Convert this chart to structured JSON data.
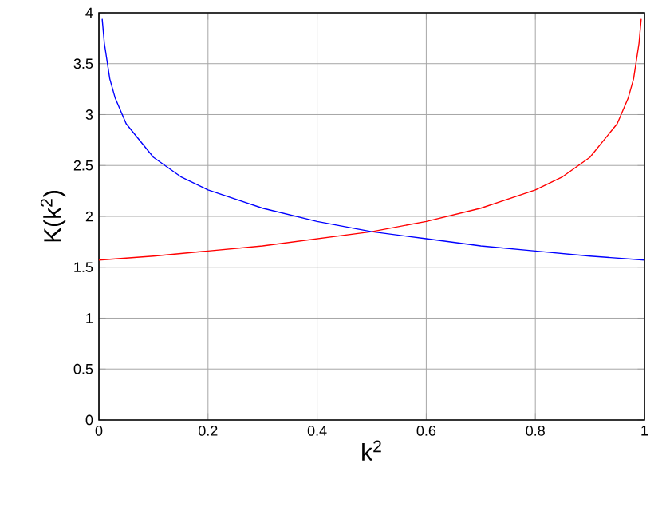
{
  "chart_data": {
    "type": "line",
    "xlabel": "k$^{2}$",
    "ylabel": "K(k$^{2}$)",
    "xlim": [
      0,
      1
    ],
    "ylim": [
      0,
      4
    ],
    "xticks": [
      0,
      0.2,
      0.4,
      0.6,
      0.8,
      1
    ],
    "yticks": [
      0,
      0.5,
      1,
      1.5,
      2,
      2.5,
      3,
      3.5,
      4
    ],
    "grid": true,
    "series": [
      {
        "color": "#ff0000",
        "x": [
          0,
          0.1,
          0.2,
          0.3,
          0.4,
          0.5,
          0.6,
          0.7,
          0.8,
          0.85,
          0.9,
          0.95,
          0.97,
          0.98,
          0.99,
          0.994
        ],
        "values": [
          1.57,
          1.61,
          1.66,
          1.71,
          1.78,
          1.85,
          1.95,
          2.08,
          2.26,
          2.39,
          2.58,
          2.91,
          3.16,
          3.35,
          3.7,
          3.94
        ]
      },
      {
        "color": "#0000ff",
        "x": [
          0.006,
          0.01,
          0.02,
          0.03,
          0.05,
          0.1,
          0.15,
          0.2,
          0.3,
          0.4,
          0.5,
          0.6,
          0.7,
          0.8,
          0.9,
          1
        ],
        "values": [
          3.94,
          3.7,
          3.35,
          3.16,
          2.91,
          2.58,
          2.39,
          2.26,
          2.08,
          1.95,
          1.85,
          1.78,
          1.71,
          1.66,
          1.61,
          1.57
        ]
      }
    ]
  }
}
